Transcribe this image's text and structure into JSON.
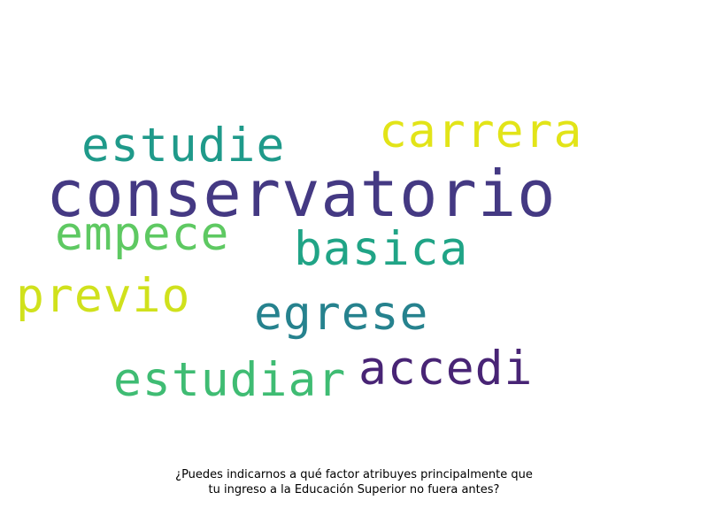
{
  "words": [
    {
      "text": "conservatorio",
      "color": "#443983"
    },
    {
      "text": "carrera",
      "color": "#e2e418"
    },
    {
      "text": "estudie",
      "color": "#1f9a8a"
    },
    {
      "text": "empece",
      "color": "#5ec962"
    },
    {
      "text": "basica",
      "color": "#20a486"
    },
    {
      "text": "previo",
      "color": "#d0e11c"
    },
    {
      "text": "egrese",
      "color": "#26828e"
    },
    {
      "text": "accedi",
      "color": "#482475"
    },
    {
      "text": "estudiar",
      "color": "#3fbc73"
    }
  ],
  "caption": {
    "line1": "¿Puedes indicarnos a qué factor atribuyes principalmente que",
    "line2": "tu ingreso a la Educación Superior no fuera antes?"
  }
}
